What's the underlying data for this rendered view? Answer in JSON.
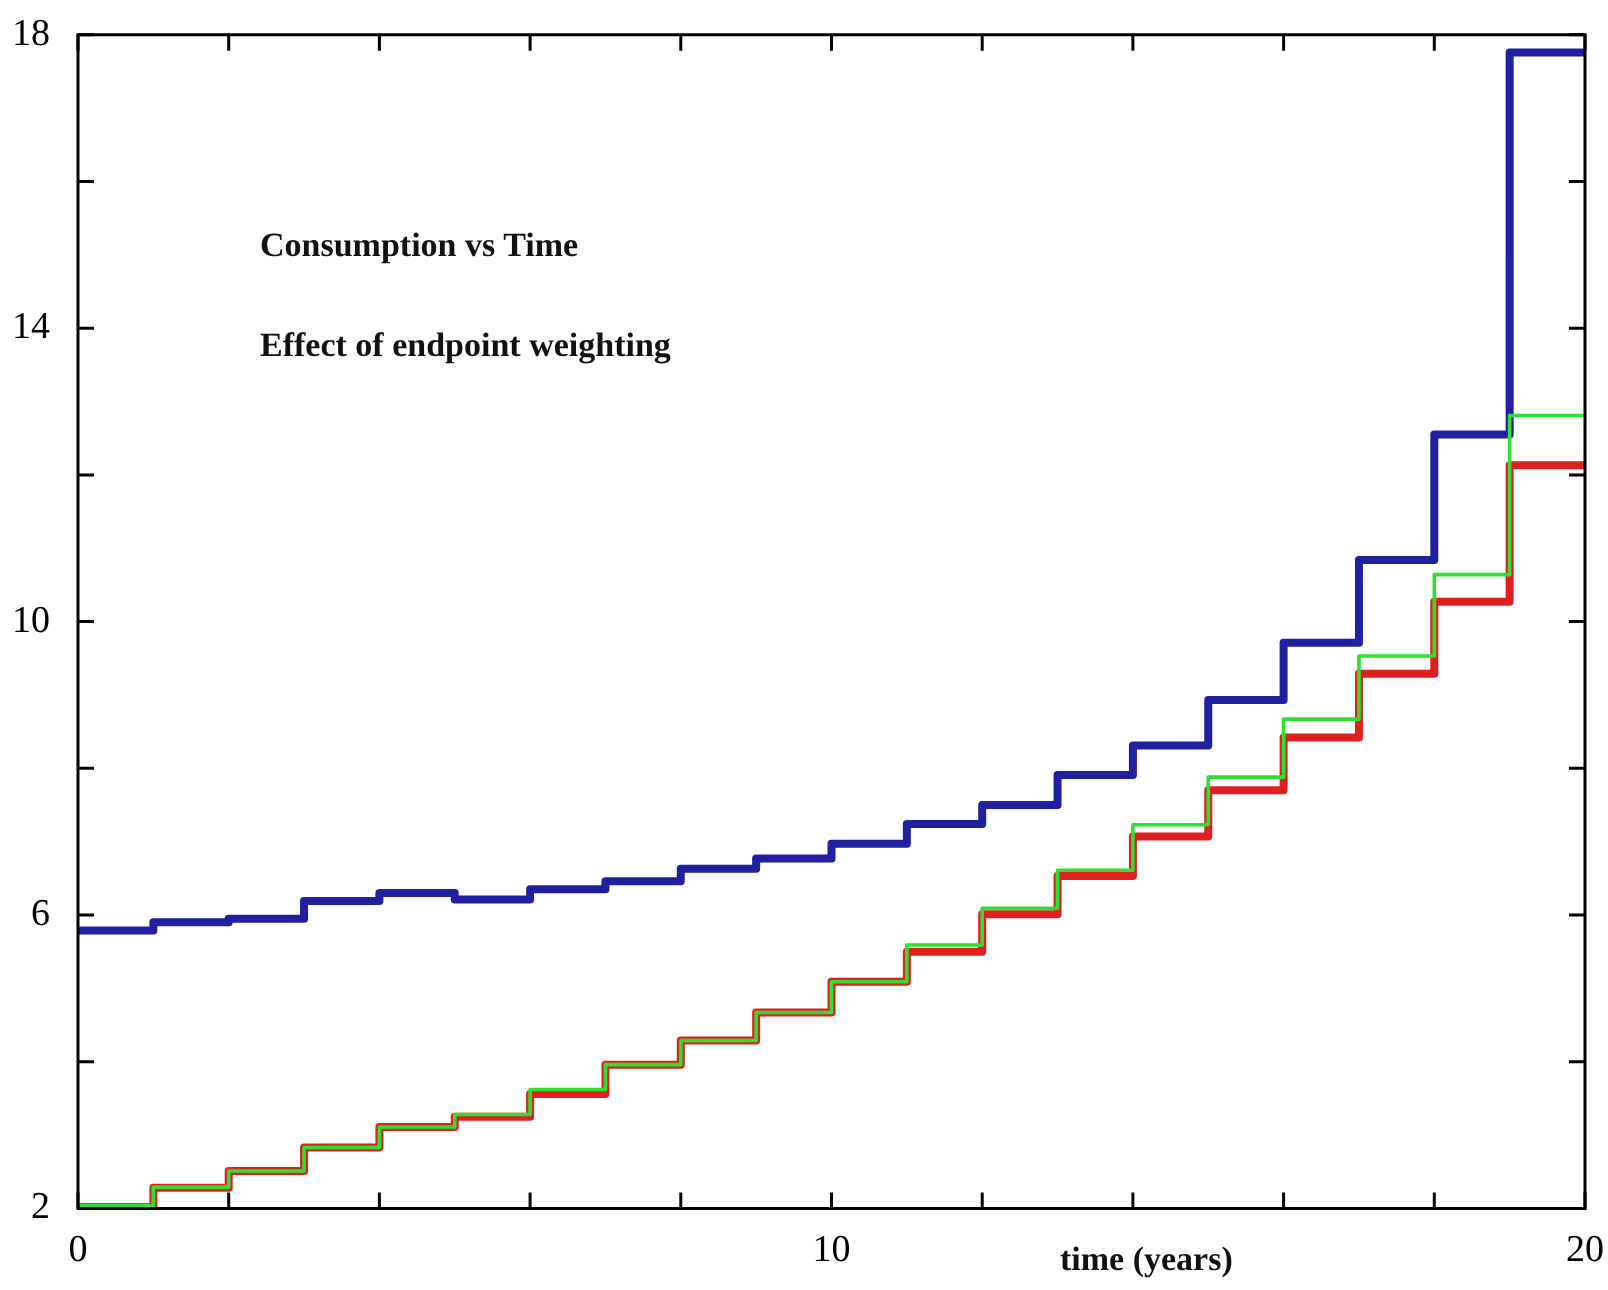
{
  "chart_data": {
    "type": "step",
    "title": "Consumption vs Time",
    "subtitle": "Effect of endpoint weighting",
    "xlabel": "time (years)",
    "x": [
      0,
      1,
      2,
      3,
      4,
      5,
      6,
      7,
      8,
      9,
      10,
      11,
      12,
      13,
      14,
      15,
      16,
      17,
      18,
      19,
      20
    ],
    "series": [
      {
        "color": "#2020a0",
        "values": [
          5.79,
          5.9,
          5.95,
          6.19,
          6.3,
          6.21,
          6.35,
          6.46,
          6.63,
          6.77,
          6.97,
          7.24,
          7.5,
          7.91,
          8.31,
          8.93,
          9.71,
          10.84,
          12.55,
          17.76,
          17.76
        ]
      },
      {
        "color": "#e02020",
        "values": [
          2.02,
          2.28,
          2.51,
          2.83,
          3.11,
          3.25,
          3.56,
          3.96,
          4.29,
          4.67,
          5.09,
          5.5,
          6.01,
          6.53,
          7.07,
          7.7,
          8.42,
          9.29,
          10.27,
          12.13,
          12.13
        ]
      },
      {
        "color": "#30e030",
        "values": [
          2.04,
          2.29,
          2.51,
          2.83,
          3.11,
          3.28,
          3.62,
          3.96,
          4.29,
          4.67,
          5.09,
          5.59,
          6.09,
          6.61,
          7.23,
          7.88,
          8.67,
          9.53,
          10.64,
          12.81,
          12.81
        ]
      }
    ],
    "xlim": [
      0,
      20
    ],
    "xticks": [
      0,
      {
        "value": 2,
        "label": null
      },
      {
        "value": 4,
        "label": null
      },
      {
        "value": 6,
        "label": null
      },
      {
        "value": 8,
        "label": null
      },
      10,
      {
        "value": 12,
        "label": null
      },
      {
        "value": 14,
        "label": null
      },
      {
        "value": 16,
        "label": null
      },
      {
        "value": 18,
        "label": null
      },
      20
    ],
    "ylim": [
      2,
      18
    ],
    "yticks": [
      2,
      {
        "value": 4,
        "label": null
      },
      6,
      {
        "value": 8,
        "label": null
      },
      10,
      {
        "value": 12,
        "label": null
      },
      14,
      {
        "value": 16,
        "label": null
      },
      18
    ],
    "grid": false,
    "legend": false,
    "marker": "none",
    "line_style": "solid"
  }
}
